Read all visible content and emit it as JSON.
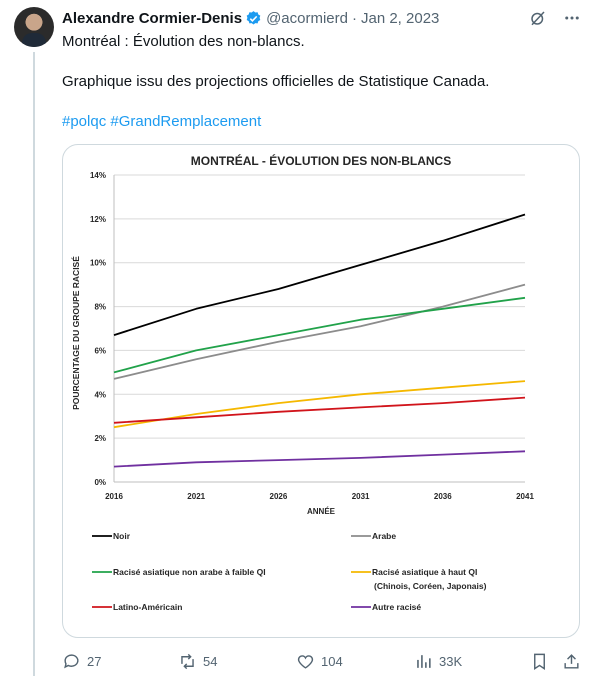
{
  "tweet": {
    "author": "Alexandre Cormier-Denis",
    "handle": "@acormierd",
    "separator": "·",
    "date": "Jan 2, 2023",
    "text_line1": "Montréal : Évolution des non-blancs.",
    "text_line2": "Graphique issu des projections officielles de Statistique Canada.",
    "hashtags": [
      "#polqc",
      "#GrandRemplacement"
    ]
  },
  "actions": {
    "replies": "27",
    "reposts": "54",
    "likes": "104",
    "views": "33K"
  },
  "colors": {
    "accent": "#1d9bf0",
    "secondary_text": "#536471"
  },
  "chart_data": {
    "type": "line",
    "title": "MONTRÉAL - ÉVOLUTION DES NON-BLANCS",
    "xlabel": "ANNÉE",
    "ylabel": "POURCENTAGE DU GROUPE RACISÉ",
    "xlim": [
      2016,
      2041
    ],
    "ylim": [
      0,
      14
    ],
    "x_ticks": [
      "2016",
      "2021",
      "2026",
      "2031",
      "2036",
      "2041"
    ],
    "y_ticks": [
      "0%",
      "2%",
      "4%",
      "6%",
      "8%",
      "10%",
      "12%",
      "14%"
    ],
    "grid": "horizontal",
    "x": [
      2016,
      2021,
      2026,
      2031,
      2036,
      2041
    ],
    "series": [
      {
        "name": "Noir",
        "color": "#000000",
        "values": [
          6.7,
          7.9,
          8.8,
          9.9,
          11.0,
          12.2
        ]
      },
      {
        "name": "Arabe",
        "color": "#8c8c8c",
        "values": [
          4.7,
          5.6,
          6.4,
          7.1,
          8.0,
          9.0
        ]
      },
      {
        "name": "Racisé asiatique non arabe à faible QI",
        "color": "#21a24a",
        "values": [
          5.0,
          6.0,
          6.7,
          7.4,
          7.9,
          8.4
        ]
      },
      {
        "name": "Racisé asiatique à haut QI",
        "name_line2": "(Chinois, Coréen, Japonais)",
        "color": "#f5b800",
        "values": [
          2.5,
          3.1,
          3.6,
          4.0,
          4.3,
          4.6
        ]
      },
      {
        "name": "Latino-Américain",
        "color": "#d1141b",
        "values": [
          2.7,
          2.95,
          3.2,
          3.4,
          3.6,
          3.85
        ]
      },
      {
        "name": "Autre racisé",
        "color": "#7030a0",
        "values": [
          0.7,
          0.9,
          1.0,
          1.1,
          1.25,
          1.4
        ]
      }
    ]
  }
}
